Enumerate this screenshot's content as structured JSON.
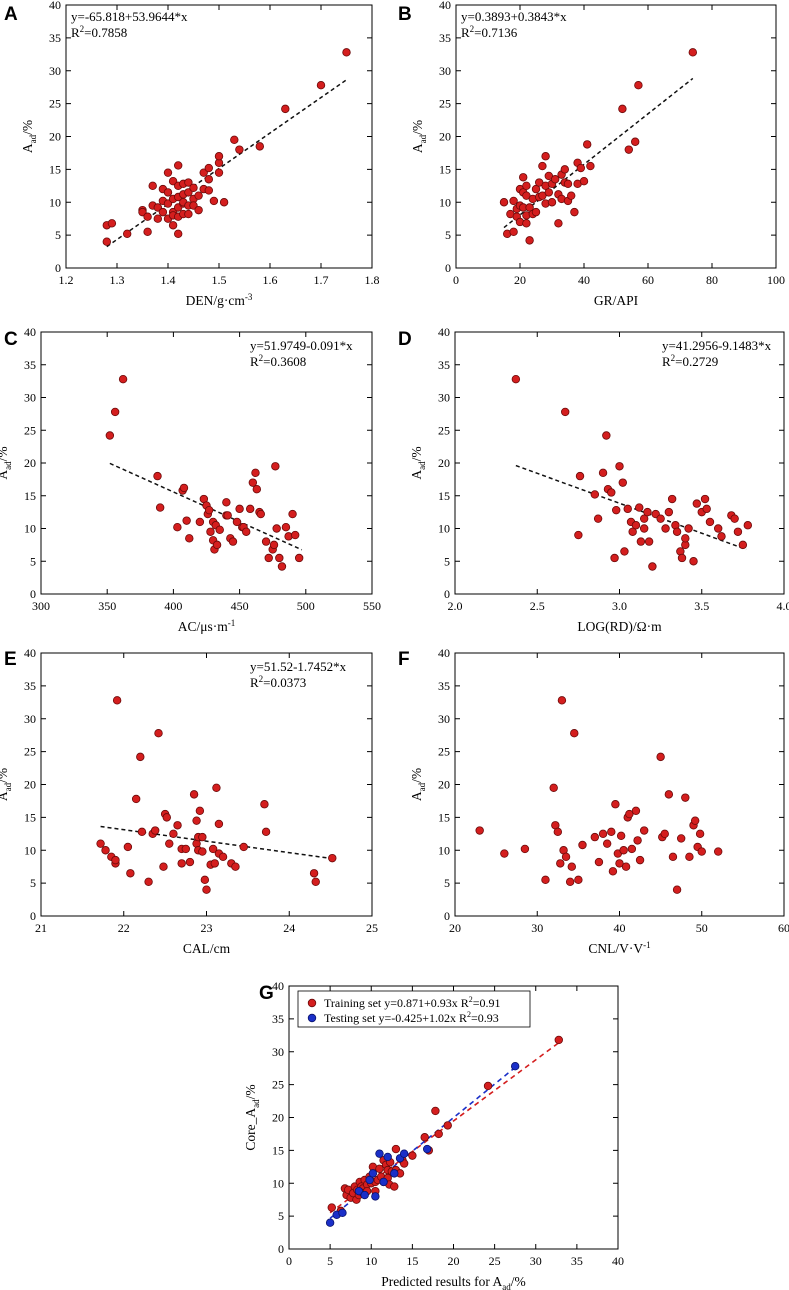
{
  "figure": {
    "background": "#ffffff",
    "point_color": "#d41e1e",
    "point_stroke": "#6b0a0a",
    "fit_color": "#111111",
    "test_color": "#1a2fc8",
    "test_stroke": "#0a126a"
  },
  "chart_data": [
    {
      "id": "A",
      "type": "scatter",
      "panel_label": "A",
      "xlabel": "DEN/g·cm",
      "xlabel_sup": "-3",
      "ylabel": "A",
      "ylabel_sub": "ad",
      "ylabel_suffix": "/%",
      "xlim": [
        1.2,
        1.8
      ],
      "ylim": [
        0,
        40
      ],
      "xticks": [
        1.2,
        1.3,
        1.4,
        1.5,
        1.6,
        1.7,
        1.8
      ],
      "xtick_labels": [
        "1.2",
        "1.3",
        "1.4",
        "1.5",
        "1.6",
        "1.7",
        "1.8"
      ],
      "yticks": [
        0,
        5,
        10,
        15,
        20,
        25,
        30,
        35,
        40
      ],
      "ytick_labels": [
        "0",
        "5",
        "10",
        "15",
        "20",
        "25",
        "30",
        "35",
        "40"
      ],
      "equation": "y=-65.818+53.9644*x",
      "r2_label": "R",
      "r2_value": "=0.7858",
      "legend_pos": "top-left",
      "fit": {
        "intercept": -65.818,
        "slope": 53.9644,
        "x_range": [
          1.28,
          1.75
        ]
      },
      "x": [
        1.28,
        1.28,
        1.29,
        1.32,
        1.35,
        1.35,
        1.36,
        1.36,
        1.37,
        1.37,
        1.38,
        1.38,
        1.39,
        1.39,
        1.39,
        1.4,
        1.4,
        1.4,
        1.4,
        1.41,
        1.41,
        1.41,
        1.41,
        1.41,
        1.42,
        1.42,
        1.42,
        1.42,
        1.42,
        1.42,
        1.43,
        1.43,
        1.43,
        1.43,
        1.43,
        1.44,
        1.44,
        1.44,
        1.44,
        1.45,
        1.45,
        1.45,
        1.46,
        1.46,
        1.47,
        1.47,
        1.48,
        1.48,
        1.48,
        1.49,
        1.5,
        1.5,
        1.5,
        1.51,
        1.53,
        1.54,
        1.58,
        1.63,
        1.7,
        1.75
      ],
      "y": [
        4.0,
        6.5,
        6.8,
        5.2,
        8.8,
        8.5,
        5.5,
        7.8,
        9.5,
        12.5,
        9.2,
        7.5,
        10.2,
        12.0,
        8.5,
        11.5,
        14.5,
        9.8,
        7.5,
        13.2,
        10.5,
        8.5,
        6.5,
        8.0,
        10.8,
        12.5,
        15.6,
        9.2,
        7.8,
        5.2,
        11.2,
        12.8,
        9.8,
        8.2,
        10.0,
        13.0,
        11.5,
        9.5,
        8.2,
        12.2,
        10.5,
        9.5,
        11.0,
        8.8,
        14.5,
        12.0,
        15.2,
        11.8,
        13.5,
        10.2,
        16.0,
        14.5,
        17.0,
        10.0,
        19.5,
        18.0,
        18.5,
        24.2,
        27.8,
        32.8
      ]
    },
    {
      "id": "B",
      "type": "scatter",
      "panel_label": "B",
      "xlabel": "GR/API",
      "ylabel": "A",
      "ylabel_sub": "ad",
      "ylabel_suffix": "/%",
      "xlim": [
        0,
        100
      ],
      "ylim": [
        0,
        40
      ],
      "xticks": [
        0,
        20,
        40,
        60,
        80,
        100
      ],
      "xtick_labels": [
        "0",
        "20",
        "40",
        "60",
        "80",
        "100"
      ],
      "yticks": [
        0,
        5,
        10,
        15,
        20,
        25,
        30,
        35,
        40
      ],
      "ytick_labels": [
        "0",
        "5",
        "10",
        "15",
        "20",
        "25",
        "30",
        "35",
        "40"
      ],
      "equation": "y=0.3893+0.3843*x",
      "r2_label": "R",
      "r2_value": "=0.7136",
      "legend_pos": "top-left",
      "fit": {
        "intercept": 0.3893,
        "slope": 0.3843,
        "x_range": [
          15,
          74
        ]
      },
      "x": [
        15,
        16,
        17,
        18,
        18,
        19,
        19,
        20,
        20,
        20,
        21,
        21,
        21,
        22,
        22,
        22,
        22,
        23,
        23,
        24,
        24,
        25,
        25,
        26,
        26,
        27,
        27,
        28,
        28,
        28,
        29,
        29,
        30,
        30,
        31,
        32,
        32,
        33,
        33,
        34,
        34,
        35,
        35,
        36,
        37,
        38,
        38,
        39,
        40,
        41,
        42,
        52,
        54,
        56,
        57,
        74
      ],
      "y": [
        10.0,
        5.2,
        8.2,
        5.5,
        10.2,
        9.0,
        7.8,
        9.5,
        12.0,
        7.0,
        11.5,
        9.2,
        13.8,
        8.0,
        11.0,
        6.8,
        12.5,
        9.2,
        4.2,
        10.5,
        8.2,
        12.0,
        8.5,
        13.0,
        10.8,
        11.0,
        15.5,
        9.8,
        12.5,
        17.0,
        11.5,
        14.0,
        12.8,
        10.0,
        13.5,
        11.2,
        6.8,
        14.2,
        10.5,
        13.0,
        15.0,
        10.2,
        12.8,
        11.0,
        8.5,
        12.8,
        16.0,
        15.2,
        13.2,
        18.8,
        15.5,
        24.2,
        18.0,
        19.2,
        27.8,
        32.8
      ]
    },
    {
      "id": "C",
      "type": "scatter",
      "panel_label": "C",
      "xlabel": "AC/μs·m",
      "xlabel_sup": "-1",
      "ylabel": "A",
      "ylabel_sub": "ad",
      "ylabel_suffix": "/%",
      "xlim": [
        300,
        550
      ],
      "ylim": [
        0,
        40
      ],
      "xticks": [
        300,
        350,
        400,
        450,
        500,
        550
      ],
      "xtick_labels": [
        "300",
        "350",
        "400",
        "450",
        "500",
        "550"
      ],
      "yticks": [
        0,
        5,
        10,
        15,
        20,
        25,
        30,
        35,
        40
      ],
      "ytick_labels": [
        "0",
        "5",
        "10",
        "15",
        "20",
        "25",
        "30",
        "35",
        "40"
      ],
      "equation": "y=51.9749-0.091*x",
      "r2_label": "R",
      "r2_value": "=0.3608",
      "legend_pos": "top-right",
      "fit": {
        "intercept": 51.9749,
        "slope": -0.091,
        "x_range": [
          352,
          497
        ]
      },
      "x": [
        352,
        356,
        362,
        388,
        390,
        403,
        407,
        408,
        410,
        412,
        420,
        423,
        425,
        426,
        427,
        428,
        430,
        430,
        431,
        432,
        433,
        435,
        440,
        440,
        441,
        443,
        445,
        448,
        450,
        452,
        453,
        455,
        458,
        460,
        462,
        463,
        465,
        466,
        470,
        472,
        475,
        476,
        477,
        478,
        480,
        482,
        485,
        487,
        490,
        492,
        495
      ],
      "y": [
        24.2,
        27.8,
        32.8,
        18.0,
        13.2,
        10.2,
        15.8,
        16.2,
        11.2,
        8.5,
        11.0,
        14.5,
        13.5,
        12.2,
        12.8,
        9.5,
        11.0,
        8.2,
        6.8,
        10.5,
        7.5,
        9.8,
        12.0,
        14.0,
        12.0,
        8.5,
        8.0,
        11.0,
        13.0,
        10.2,
        10.2,
        9.5,
        13.0,
        17.0,
        18.5,
        16.0,
        12.5,
        12.2,
        8.0,
        5.5,
        6.8,
        7.5,
        19.5,
        10.0,
        5.5,
        4.2,
        10.2,
        8.8,
        12.2,
        9.0,
        5.5
      ]
    },
    {
      "id": "D",
      "type": "scatter",
      "panel_label": "D",
      "xlabel": "LOG(RD)/Ω·m",
      "ylabel": "A",
      "ylabel_sub": "ad",
      "ylabel_suffix": "/%",
      "xlim": [
        2.0,
        4.0
      ],
      "ylim": [
        0,
        40
      ],
      "xticks": [
        2.0,
        2.5,
        3.0,
        3.5,
        4.0
      ],
      "xtick_labels": [
        "2.0",
        "2.5",
        "3.0",
        "3.5",
        "4.0"
      ],
      "yticks": [
        0,
        5,
        10,
        15,
        20,
        25,
        30,
        35,
        40
      ],
      "ytick_labels": [
        "0",
        "5",
        "10",
        "15",
        "20",
        "25",
        "30",
        "35",
        "40"
      ],
      "equation": "y=41.2956-9.1483*x",
      "r2_label": "R",
      "r2_value": "=0.2729",
      "legend_pos": "top-right",
      "fit": {
        "intercept": 41.2956,
        "slope": -9.1483,
        "x_range": [
          2.37,
          3.77
        ]
      },
      "x": [
        2.37,
        2.67,
        2.75,
        2.76,
        2.85,
        2.87,
        2.9,
        2.92,
        2.93,
        2.95,
        2.97,
        2.98,
        3.0,
        3.02,
        3.03,
        3.05,
        3.07,
        3.08,
        3.1,
        3.12,
        3.13,
        3.15,
        3.15,
        3.17,
        3.18,
        3.2,
        3.22,
        3.25,
        3.28,
        3.3,
        3.32,
        3.34,
        3.35,
        3.37,
        3.38,
        3.4,
        3.4,
        3.42,
        3.45,
        3.47,
        3.5,
        3.52,
        3.53,
        3.55,
        3.6,
        3.62,
        3.68,
        3.7,
        3.72,
        3.75,
        3.78
      ],
      "y": [
        32.8,
        27.8,
        9.0,
        18.0,
        15.2,
        11.5,
        18.5,
        24.2,
        16.0,
        15.5,
        5.5,
        12.8,
        19.5,
        17.0,
        6.5,
        13.0,
        11.0,
        9.5,
        10.5,
        13.2,
        8.0,
        11.5,
        10.0,
        12.5,
        8.0,
        4.2,
        12.2,
        11.5,
        10.0,
        12.5,
        14.5,
        10.5,
        9.5,
        6.5,
        5.5,
        7.5,
        8.5,
        10.0,
        5.0,
        13.8,
        12.5,
        14.5,
        13.0,
        11.0,
        10.0,
        8.8,
        12.0,
        11.5,
        9.5,
        7.5,
        10.5
      ]
    },
    {
      "id": "E",
      "type": "scatter",
      "panel_label": "E",
      "xlabel": "CAL/cm",
      "ylabel": "A",
      "ylabel_sub": "ad",
      "ylabel_suffix": "/%",
      "xlim": [
        21,
        25
      ],
      "ylim": [
        0,
        40
      ],
      "xticks": [
        21,
        22,
        23,
        24,
        25
      ],
      "xtick_labels": [
        "21",
        "22",
        "23",
        "24",
        "25"
      ],
      "yticks": [
        0,
        5,
        10,
        15,
        20,
        25,
        30,
        35,
        40
      ],
      "ytick_labels": [
        "0",
        "5",
        "10",
        "15",
        "20",
        "25",
        "30",
        "35",
        "40"
      ],
      "equation": "y=51.52-1.7452*x",
      "r2_label": "R",
      "r2_value": "=0.0373",
      "legend_pos": "top-right",
      "fit": {
        "intercept": 51.52,
        "slope": -1.7452,
        "x_range": [
          21.72,
          24.52
        ]
      },
      "x": [
        21.72,
        21.78,
        21.85,
        21.9,
        21.9,
        21.92,
        22.05,
        22.08,
        22.15,
        22.2,
        22.22,
        22.3,
        22.35,
        22.38,
        22.42,
        22.48,
        22.5,
        22.52,
        22.55,
        22.6,
        22.65,
        22.7,
        22.7,
        22.75,
        22.8,
        22.85,
        22.88,
        22.88,
        22.9,
        22.9,
        22.92,
        22.95,
        22.95,
        22.98,
        23.0,
        23.05,
        23.08,
        23.1,
        23.12,
        23.15,
        23.15,
        23.2,
        23.3,
        23.35,
        23.45,
        23.7,
        23.72,
        24.3,
        24.32,
        24.52
      ],
      "y": [
        11.0,
        10.0,
        9.0,
        8.0,
        8.5,
        32.8,
        10.5,
        6.5,
        17.8,
        24.2,
        12.8,
        5.2,
        12.5,
        13.0,
        27.8,
        7.5,
        15.5,
        15.0,
        11.0,
        12.5,
        13.8,
        8.0,
        10.2,
        10.2,
        8.2,
        18.5,
        14.5,
        11.0,
        10.0,
        12.0,
        16.0,
        9.8,
        12.0,
        5.5,
        4.0,
        7.8,
        10.2,
        8.0,
        19.5,
        9.5,
        14.0,
        9.0,
        8.0,
        7.5,
        10.5,
        17.0,
        12.8,
        6.5,
        5.2,
        8.8
      ]
    },
    {
      "id": "F",
      "type": "scatter",
      "panel_label": "F",
      "xlabel": "CNL/V·V",
      "xlabel_sup": "-1",
      "ylabel": "A",
      "ylabel_sub": "ad",
      "ylabel_suffix": "/%",
      "xlim": [
        20,
        60
      ],
      "ylim": [
        0,
        40
      ],
      "xticks": [
        20,
        30,
        40,
        50,
        60
      ],
      "xtick_labels": [
        "20",
        "30",
        "40",
        "50",
        "60"
      ],
      "yticks": [
        0,
        5,
        10,
        15,
        20,
        25,
        30,
        35,
        40
      ],
      "ytick_labels": [
        "0",
        "5",
        "10",
        "15",
        "20",
        "25",
        "30",
        "35",
        "40"
      ],
      "legend_pos": "none",
      "x": [
        23.0,
        26.0,
        28.5,
        31.0,
        32.0,
        32.2,
        32.5,
        32.8,
        33.0,
        33.2,
        33.5,
        34.0,
        34.2,
        34.5,
        35.0,
        35.5,
        37.0,
        37.5,
        38.0,
        38.5,
        39.0,
        39.2,
        39.5,
        39.8,
        40.0,
        40.2,
        40.5,
        40.8,
        41.0,
        41.2,
        41.5,
        42.0,
        42.2,
        42.5,
        43.0,
        45.0,
        45.2,
        45.5,
        46.0,
        46.5,
        47.0,
        47.5,
        48.0,
        48.5,
        49.0,
        49.2,
        49.5,
        49.8,
        50.0,
        52.0
      ],
      "y": [
        13.0,
        9.5,
        10.2,
        5.5,
        19.5,
        13.8,
        12.8,
        8.0,
        32.8,
        10.0,
        9.0,
        5.2,
        7.5,
        27.8,
        5.5,
        10.8,
        12.0,
        8.2,
        12.5,
        11.0,
        12.8,
        6.8,
        17.0,
        9.5,
        8.0,
        12.2,
        10.0,
        7.5,
        15.0,
        15.5,
        10.2,
        16.0,
        11.5,
        8.5,
        13.0,
        24.2,
        12.0,
        12.5,
        18.5,
        9.0,
        4.0,
        11.8,
        18.0,
        9.0,
        13.8,
        14.5,
        10.5,
        12.5,
        9.8,
        9.8
      ]
    },
    {
      "id": "G",
      "type": "scatter",
      "panel_label": "G",
      "xlabel": "Predicted results for A",
      "xlabel_sub": "ad",
      "xlabel_suffix": "/%",
      "ylabel": "Core_A",
      "ylabel_sub": "ad",
      "ylabel_suffix": "/%",
      "xlim": [
        0,
        40
      ],
      "ylim": [
        0,
        40
      ],
      "xticks": [
        0,
        5,
        10,
        15,
        20,
        25,
        30,
        35,
        40
      ],
      "xtick_labels": [
        "0",
        "5",
        "10",
        "15",
        "20",
        "25",
        "30",
        "35",
        "40"
      ],
      "yticks": [
        0,
        5,
        10,
        15,
        20,
        25,
        30,
        35,
        40
      ],
      "ytick_labels": [
        "0",
        "5",
        "10",
        "15",
        "20",
        "25",
        "30",
        "35",
        "40"
      ],
      "legend_pos": "top-left",
      "series": [
        {
          "name": "Training set",
          "equation": "y=0.871+0.93x",
          "r2_label": "R",
          "r2_value": "=0.91",
          "color": "#d41e1e",
          "fit": {
            "intercept": 0.871,
            "slope": 0.93,
            "x_range": [
              5,
              33
            ]
          },
          "x": [
            5.2,
            6.3,
            6.8,
            7.0,
            7.2,
            7.5,
            7.8,
            8.0,
            8.2,
            8.3,
            8.5,
            8.6,
            8.8,
            9.0,
            9.0,
            9.2,
            9.5,
            9.5,
            9.8,
            10.0,
            10.2,
            10.5,
            10.5,
            10.8,
            11.0,
            11.2,
            11.5,
            11.5,
            11.8,
            12.0,
            12.0,
            12.2,
            12.3,
            12.5,
            12.8,
            13.0,
            13.0,
            13.5,
            13.8,
            14.0,
            15.0,
            16.5,
            17.0,
            17.8,
            18.2,
            19.3,
            24.2,
            32.8
          ],
          "y": [
            6.3,
            5.8,
            9.2,
            8.2,
            9.0,
            7.8,
            8.5,
            9.5,
            7.5,
            9.0,
            8.2,
            10.2,
            9.5,
            9.2,
            8.5,
            10.5,
            9.8,
            8.8,
            11.0,
            10.0,
            12.5,
            10.2,
            8.8,
            10.5,
            12.2,
            11.0,
            13.5,
            10.2,
            12.8,
            12.0,
            10.8,
            9.8,
            13.2,
            11.8,
            9.5,
            12.0,
            15.2,
            11.5,
            13.5,
            13.0,
            14.2,
            17.0,
            15.0,
            21.0,
            17.5,
            18.8,
            24.8,
            31.8
          ]
        },
        {
          "name": "Testing set",
          "equation": "y=-0.425+1.02x",
          "r2_label": "R",
          "r2_value": "=0.93",
          "color": "#1a2fc8",
          "fit": {
            "intercept": -0.425,
            "slope": 1.02,
            "x_range": [
              5,
              27.5
            ]
          },
          "x": [
            5.0,
            5.8,
            6.5,
            8.5,
            9.2,
            9.8,
            10.2,
            10.5,
            11.0,
            11.5,
            12.0,
            12.8,
            13.5,
            14.0,
            16.8,
            27.5
          ],
          "y": [
            4.0,
            5.2,
            5.5,
            8.8,
            8.2,
            10.5,
            11.5,
            8.0,
            14.5,
            10.2,
            14.0,
            11.5,
            13.8,
            14.5,
            15.2,
            27.8
          ]
        }
      ]
    }
  ]
}
